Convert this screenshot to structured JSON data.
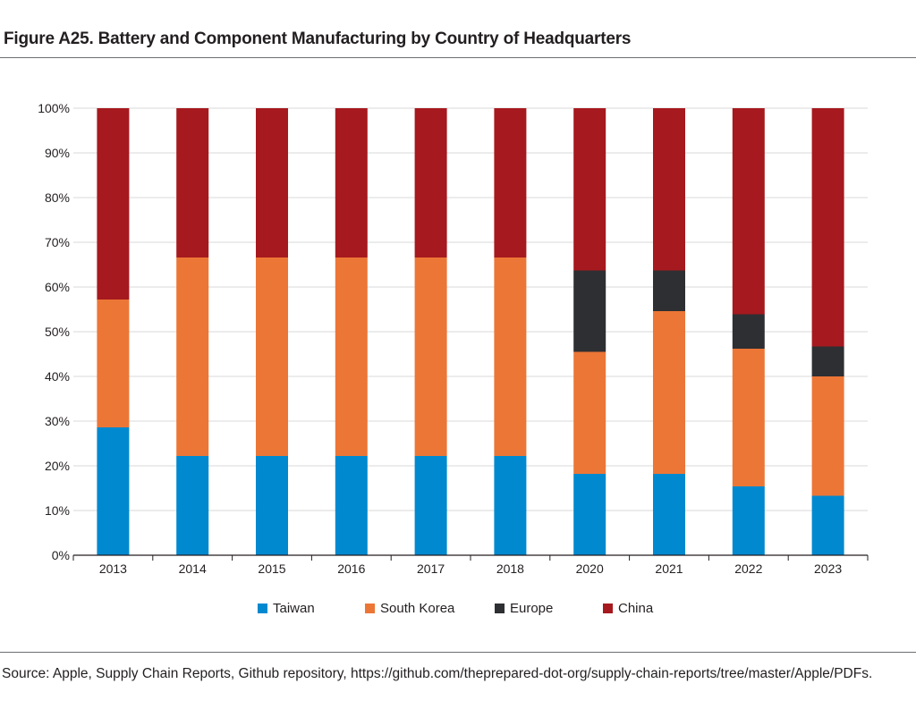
{
  "figure": {
    "title": "Figure A25. Battery and Component Manufacturing by Country of Headquarters",
    "source": "Source: Apple, Supply Chain Reports, Github repository, https://github.com/theprepared-dot-org/supply-chain-reports/tree/master/Apple/PDFs."
  },
  "chart_data": {
    "type": "bar",
    "stacked": true,
    "title": "",
    "xlabel": "",
    "ylabel": "",
    "ylim": [
      0,
      100
    ],
    "y_ticks": [
      "0%",
      "10%",
      "20%",
      "30%",
      "40%",
      "50%",
      "60%",
      "70%",
      "80%",
      "90%",
      "100%"
    ],
    "grid": true,
    "legend_position": "bottom",
    "categories": [
      "2013",
      "2014",
      "2015",
      "2016",
      "2017",
      "2018",
      "2020",
      "2021",
      "2022",
      "2023"
    ],
    "series": [
      {
        "name": "Taiwan",
        "color": "#0089cf",
        "values": [
          28.6,
          22.2,
          22.2,
          22.2,
          22.2,
          22.2,
          18.2,
          18.2,
          15.4,
          13.3
        ]
      },
      {
        "name": "South Korea",
        "color": "#ec7636",
        "values": [
          28.6,
          44.4,
          44.4,
          44.4,
          44.4,
          44.4,
          27.3,
          36.4,
          30.8,
          26.7
        ]
      },
      {
        "name": "Europe",
        "color": "#2e2f32",
        "values": [
          0,
          0,
          0,
          0,
          0,
          0,
          18.2,
          9.1,
          7.7,
          6.7
        ]
      },
      {
        "name": "China",
        "color": "#a6191e",
        "values": [
          42.8,
          33.4,
          33.4,
          33.4,
          33.4,
          33.4,
          36.3,
          36.3,
          46.1,
          53.3
        ]
      }
    ]
  }
}
